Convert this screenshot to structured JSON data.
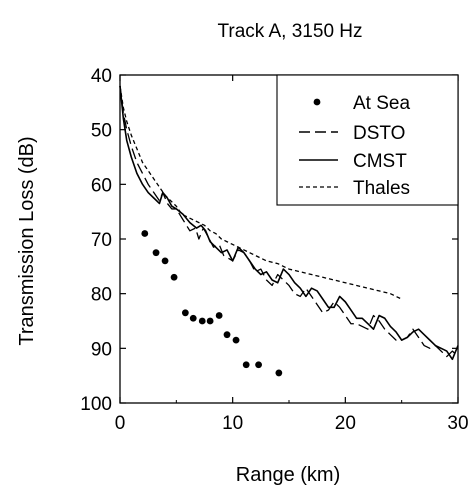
{
  "chart_data": {
    "type": "line",
    "title": "Track A, 3150 Hz",
    "xlabel": "Range (km)",
    "ylabel": "Transmission Loss (dB)",
    "xlim": [
      0,
      30
    ],
    "ylim": [
      100,
      40
    ],
    "y_axis_inverted": true,
    "x_ticks": [
      0,
      10,
      20,
      30
    ],
    "y_ticks": [
      40,
      50,
      60,
      70,
      80,
      90,
      100
    ],
    "grid": false,
    "legend_position": "top-right",
    "series": [
      {
        "name": "At Sea",
        "style": "markers",
        "x": [
          2.2,
          3.2,
          4.0,
          4.8,
          5.8,
          6.5,
          7.3,
          8.0,
          8.8,
          9.5,
          10.3,
          11.2,
          12.3,
          14.1
        ],
        "y": [
          69,
          72.5,
          74,
          77,
          83.5,
          84.5,
          85,
          85,
          84,
          87.5,
          88.5,
          93,
          93,
          94.5
        ]
      },
      {
        "name": "DSTO",
        "style": "long-dash",
        "x": [
          0,
          0.3,
          0.6,
          1,
          1.5,
          2,
          2.5,
          3,
          3.5,
          3.8,
          4.2,
          4.6,
          5,
          5.6,
          6.2,
          6.7,
          7,
          7.4,
          7.8,
          8.3,
          8.8,
          9.2,
          9.6,
          10,
          10.5,
          11,
          11.5,
          12,
          12.5,
          13,
          13.5,
          14,
          14.5,
          15,
          15.5,
          16,
          16.5,
          17,
          17.5,
          18,
          18.5,
          19,
          19.5,
          20,
          20.5,
          21,
          21.5,
          22,
          22.5,
          23,
          23.5,
          24,
          24.5,
          25,
          25.5,
          26,
          26.5,
          27,
          27.5,
          28,
          28.5,
          29,
          29.5,
          30
        ],
        "y": [
          42,
          47,
          50,
          53,
          56,
          58,
          60,
          61.5,
          63,
          61.5,
          63.5,
          64.5,
          64.5,
          66.5,
          68.5,
          68,
          70,
          68,
          69.5,
          71.5,
          71,
          73,
          73.5,
          74,
          72,
          72.5,
          74,
          76,
          75.5,
          77.5,
          78.5,
          76.5,
          77.5,
          78.5,
          80,
          80.5,
          79,
          80.5,
          82,
          83.5,
          83,
          81.5,
          82.5,
          84,
          85.5,
          85.5,
          86,
          86.5,
          84,
          85,
          86.5,
          87.5,
          88.5,
          88.5,
          88,
          86.5,
          88,
          89.5,
          90,
          89.5,
          90.5,
          91.5,
          90.5,
          91.5
        ]
      },
      {
        "name": "CMST",
        "style": "solid",
        "x": [
          0,
          0.3,
          0.6,
          1,
          1.5,
          2,
          2.5,
          3,
          3.5,
          3.8,
          4.2,
          4.6,
          5,
          5.6,
          6.2,
          6.8,
          7.2,
          7.6,
          8,
          8.5,
          9,
          9.5,
          10,
          10.5,
          11,
          11.5,
          12,
          12.5,
          13,
          13.5,
          14,
          14.5,
          15,
          15.5,
          16,
          16.5,
          17,
          17.5,
          18,
          18.5,
          19,
          19.5,
          20,
          20.5,
          21,
          21.5,
          22,
          22.5,
          23,
          23.5,
          24,
          24.5,
          25,
          25.5,
          26,
          26.5,
          27,
          27.5,
          28,
          28.5,
          29,
          29.5,
          30
        ],
        "y": [
          42,
          48,
          52,
          55,
          58,
          60,
          61.5,
          62.5,
          63.5,
          61.5,
          62.5,
          64,
          64.5,
          65.5,
          67,
          68,
          67.5,
          68.5,
          70.5,
          71.5,
          72.5,
          72,
          74,
          71.5,
          72.5,
          74,
          75.5,
          76.5,
          76,
          77.5,
          78,
          75.5,
          76.5,
          78,
          79,
          80.5,
          79,
          79.5,
          81,
          82.5,
          82.5,
          80.5,
          81.5,
          83,
          84.5,
          84.5,
          85.5,
          86.5,
          84,
          84.5,
          86,
          87,
          88.5,
          88,
          87,
          86.5,
          87.5,
          88.5,
          89.5,
          90,
          90.5,
          92,
          89.5
        ]
      },
      {
        "name": "Thales",
        "style": "short-dash",
        "x": [
          0,
          0.3,
          0.6,
          1,
          1.5,
          2,
          2.5,
          3,
          3.5,
          4,
          4.5,
          5,
          5.5,
          6,
          6.5,
          7,
          7.5,
          8,
          8.5,
          9,
          9.5,
          10,
          10.5,
          11,
          12,
          13,
          14,
          15,
          16,
          17,
          18,
          19,
          20,
          21,
          22,
          23,
          24,
          24.5,
          25
        ],
        "y": [
          42,
          46,
          48.5,
          51,
          53.5,
          56,
          57.5,
          59,
          60.5,
          62,
          63,
          64,
          65.5,
          66,
          66.5,
          67,
          67.5,
          68.5,
          69,
          70,
          70.5,
          71,
          71.5,
          72,
          73,
          74,
          74.5,
          75.5,
          76,
          76.5,
          77,
          77.5,
          78,
          78.5,
          79,
          79.5,
          80,
          80.5,
          81
        ]
      }
    ]
  }
}
